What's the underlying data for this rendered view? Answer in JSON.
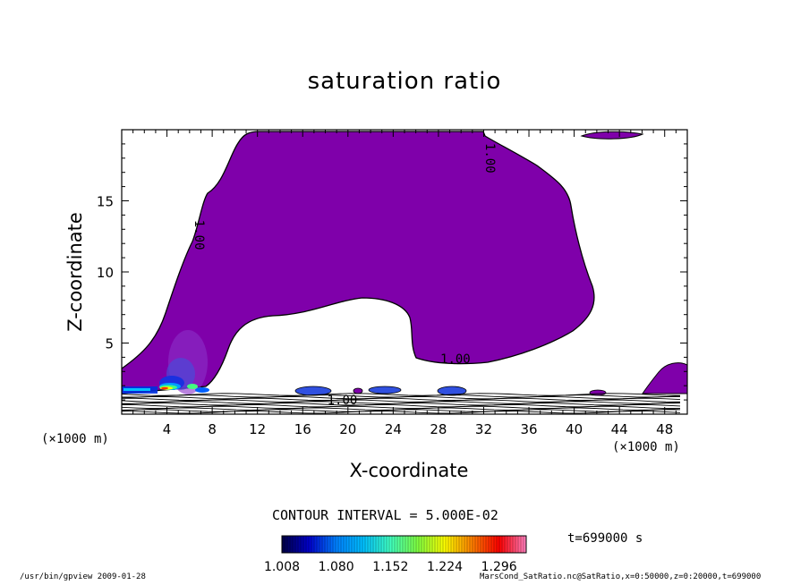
{
  "chart_data": {
    "type": "contour",
    "title": "saturation ratio",
    "xlabel": "X-coordinate",
    "ylabel": "Z-coordinate",
    "x_unit": "(×1000 m)",
    "xlim": [
      0,
      50
    ],
    "ylim": [
      0,
      20
    ],
    "xticks": [
      4,
      8,
      12,
      16,
      20,
      24,
      28,
      32,
      36,
      40,
      44,
      48
    ],
    "yticks": [
      5,
      10,
      15
    ],
    "contour_labels": [
      {
        "text": "1.00",
        "x": 32.2,
        "y": 18
      },
      {
        "text": "1.00",
        "x": 6.5,
        "y": 12.6
      },
      {
        "text": "1.00",
        "x": 29.5,
        "y": 3.6
      },
      {
        "text": "1.00",
        "x": 19.5,
        "y": 0.7
      }
    ],
    "contour_interval": "CONTOUR INTERVAL = 5.000E-02",
    "colorbar": {
      "ticks": [
        "1.008",
        "1.080",
        "1.152",
        "1.224",
        "1.296"
      ],
      "min": 1.008,
      "max": 1.332,
      "colors": [
        "#000044",
        "#0000cc",
        "#0080ff",
        "#00c0ff",
        "#40ffc0",
        "#80ff40",
        "#ffff00",
        "#ff8000",
        "#ff0000",
        "#ff80c0"
      ]
    },
    "fill_color": "#7f00aa"
  },
  "time_label": "t=699000 s",
  "footer": {
    "left": "/usr/bin/gpview   2009-01-28",
    "right": "MarsCond_SatRatio.nc@SatRatio,x=0:50000,z=0:20000,t=699000"
  }
}
